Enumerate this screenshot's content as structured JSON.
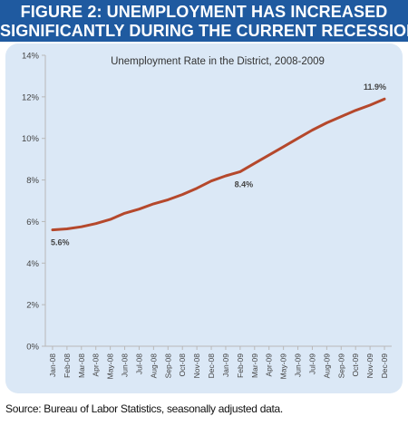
{
  "header": {
    "line1": "FIGURE 2: UNEMPLOYMENT HAS INCREASED",
    "line2": "SIGNIFICANTLY DURING THE CURRENT RECESSION"
  },
  "source": "Source: Bureau of Labor Statistics, seasonally adjusted data.",
  "colors": {
    "header_bg": "#1f5aa0",
    "panel_bg": "#dbe8f6",
    "line": "#b5482c"
  },
  "chart_data": {
    "type": "line",
    "title": "Unemployment Rate in the District, 2008-2009",
    "xlabel": "",
    "ylabel": "",
    "ylim": [
      0,
      14
    ],
    "yticks": [
      "0%",
      "2%",
      "4%",
      "6%",
      "8%",
      "10%",
      "12%",
      "14%"
    ],
    "ytick_values": [
      0,
      2,
      4,
      6,
      8,
      10,
      12,
      14
    ],
    "grid": false,
    "categories": [
      "Jan-08",
      "Feb-08",
      "Mar-08",
      "Apr-08",
      "May-08",
      "Jun-08",
      "Jul-08",
      "Aug-08",
      "Sep-08",
      "Oct-08",
      "Nov-08",
      "Dec-08",
      "Jan-09",
      "Feb-09",
      "Mar-09",
      "Apr-09",
      "May-09",
      "Jun-09",
      "Jul-09",
      "Aug-09",
      "Sep-09",
      "Oct-09",
      "Nov-09",
      "Dec-09"
    ],
    "series": [
      {
        "values": [
          5.6,
          5.65,
          5.75,
          5.9,
          6.1,
          6.4,
          6.6,
          6.85,
          7.05,
          7.3,
          7.6,
          7.95,
          8.2,
          8.4,
          8.8,
          9.2,
          9.6,
          10.0,
          10.4,
          10.75,
          11.05,
          11.35,
          11.6,
          11.9
        ]
      }
    ],
    "annotations": [
      {
        "index": 0,
        "label": "5.6%"
      },
      {
        "index": 13,
        "label": "8.4%"
      },
      {
        "index": 23,
        "label": "11.9%"
      }
    ]
  }
}
